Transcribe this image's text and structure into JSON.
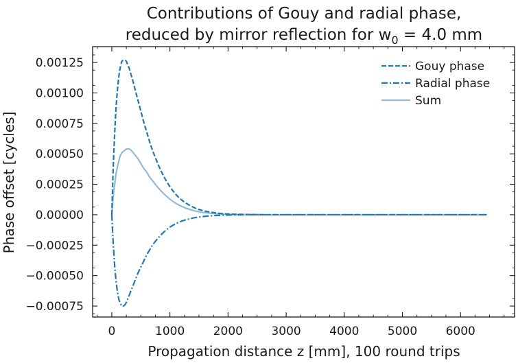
{
  "chart_data": {
    "type": "line",
    "title": "Contributions of Gouy and radial phase,",
    "subtitle_prefix": "reduced by mirror reflection for w",
    "subtitle_sub": "0",
    "subtitle_suffix": " = 4.0 mm",
    "xlabel": "Propagation distance z [mm], 100 round trips",
    "ylabel": "Phase offset [cycles]",
    "xlim": [
      -330,
      6930
    ],
    "ylim": [
      -0.00084,
      0.00138
    ],
    "xticks": [
      0,
      1000,
      2000,
      3000,
      4000,
      5000,
      6000
    ],
    "xtick_labels": [
      "0",
      "1000",
      "2000",
      "3000",
      "4000",
      "5000",
      "6000"
    ],
    "yticks": [
      0.00125,
      0.001,
      0.00075,
      0.0005,
      0.00025,
      0,
      -0.00025,
      -0.0005,
      -0.00075
    ],
    "ytick_labels": [
      "0.00125",
      "0.00100",
      "0.00075",
      "0.00050",
      "0.00025",
      "0.00000",
      "−0.00025",
      "−0.00050",
      "−0.00075"
    ],
    "grid": false,
    "legend_position": "top-right",
    "series": [
      {
        "name": "Gouy phase",
        "style": "dashed",
        "color": "#1f77b4",
        "x": [
          0,
          25,
          50,
          75,
          100,
          125,
          150,
          175,
          200,
          225,
          250,
          275,
          300,
          350,
          400,
          450,
          500,
          550,
          600,
          650,
          700,
          800,
          900,
          1000,
          1100,
          1200,
          1300,
          1400,
          1500,
          1600,
          1700,
          1800,
          1900,
          2000,
          2100,
          2200,
          2400,
          2600,
          2800,
          3000,
          3500,
          4000,
          5000,
          6000,
          6450
        ],
        "y": [
          0.0,
          0.00039,
          0.00067,
          0.00089,
          0.00104,
          0.00115,
          0.00122,
          0.00126,
          0.00127,
          0.00127,
          0.00126,
          0.00123,
          0.0012,
          0.00112,
          0.00103,
          0.00094,
          0.00085,
          0.00076,
          0.00068,
          0.0006,
          0.00053,
          0.00041,
          0.00031,
          0.00023,
          0.000168,
          0.000122,
          8.8e-05,
          6.2e-05,
          4.3e-05,
          3e-05,
          2.1e-05,
          1.4e-05,
          9e-06,
          6e-06,
          4e-06,
          3e-06,
          1e-06,
          0.0,
          0.0,
          0.0,
          0.0,
          0.0,
          0.0,
          0.0,
          0.0
        ]
      },
      {
        "name": "Radial phase",
        "style": "dashdot",
        "color": "#1f77b4",
        "x": [
          0,
          25,
          50,
          75,
          100,
          125,
          150,
          175,
          200,
          225,
          250,
          275,
          300,
          350,
          400,
          450,
          500,
          550,
          600,
          650,
          700,
          800,
          900,
          1000,
          1100,
          1200,
          1300,
          1400,
          1500,
          1600,
          1700,
          1800,
          1900,
          2000,
          2100,
          2200,
          2400,
          2600,
          2800,
          3000,
          3500,
          4000,
          5000,
          6000,
          6450
        ],
        "y": [
          0.0,
          -0.00024,
          -0.00042,
          -0.00055,
          -0.00064,
          -0.0007,
          -0.00073,
          -0.00075,
          -0.00075,
          -0.00074,
          -0.00072,
          -0.00069,
          -0.00066,
          -0.0006,
          -0.00054,
          -0.00048,
          -0.00043,
          -0.00038,
          -0.00033,
          -0.00029,
          -0.00025,
          -0.00019,
          -0.00014,
          -0.000102,
          -7.4e-05,
          -5.3e-05,
          -3.8e-05,
          -2.7e-05,
          -1.9e-05,
          -1.3e-05,
          -9e-06,
          -6e-06,
          -4e-06,
          -3e-06,
          -2e-06,
          -1e-06,
          0.0,
          0.0,
          0.0,
          0.0,
          0.0,
          0.0,
          0.0,
          0.0,
          0.0
        ]
      },
      {
        "name": "Sum",
        "style": "solid",
        "color": "#8fbbd9",
        "x": [
          0,
          25,
          50,
          75,
          100,
          125,
          150,
          175,
          200,
          225,
          250,
          275,
          300,
          350,
          400,
          450,
          500,
          550,
          600,
          650,
          700,
          800,
          900,
          1000,
          1100,
          1200,
          1300,
          1400,
          1500,
          1600,
          1700,
          1800,
          1900,
          2000,
          2100,
          2200,
          2400,
          2600,
          2800,
          3000,
          3500,
          4000,
          5000,
          6000,
          6450
        ],
        "y": [
          0.0,
          0.00015,
          0.00025,
          0.00034,
          0.0004,
          0.00045,
          0.00049,
          0.00051,
          0.00052,
          0.00053,
          0.00054,
          0.00054,
          0.00054,
          0.00052,
          0.00049,
          0.00046,
          0.00042,
          0.00038,
          0.00035,
          0.00031,
          0.00028,
          0.00022,
          0.00017,
          0.000128,
          9.4e-05,
          6.9e-05,
          5e-05,
          3.5e-05,
          2.4e-05,
          1.7e-05,
          1.2e-05,
          8e-06,
          5e-06,
          3e-06,
          2e-06,
          2e-06,
          1e-06,
          0.0,
          0.0,
          0.0,
          0.0,
          0.0,
          0.0,
          0.0,
          0.0
        ]
      }
    ]
  }
}
